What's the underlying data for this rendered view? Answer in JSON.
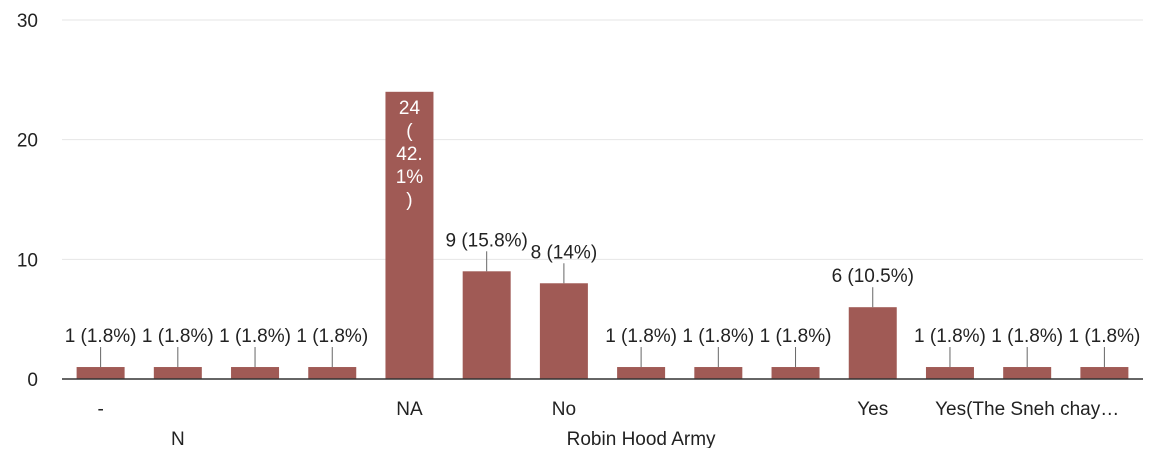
{
  "chart_data": {
    "type": "bar",
    "categories": [
      "-",
      "N",
      "",
      "",
      "NA",
      "",
      "No",
      "Robin Hood Army",
      "",
      "",
      "Yes",
      "",
      "Yes(The Sneh chay…",
      ""
    ],
    "values": [
      1,
      1,
      1,
      1,
      24,
      9,
      8,
      1,
      1,
      1,
      6,
      1,
      1,
      1
    ],
    "data_labels": [
      "1 (1.8%)",
      "1 (1.8%)",
      "1 (1.8%)",
      "1 (1.8%)",
      "24 (42.1%)",
      "9 (15.8%)",
      "8 (14%)",
      "1 (1.8%)",
      "1 (1.8%)",
      "1 (1.8%)",
      "6 (10.5%)",
      "1 (1.8%)",
      "1 (1.8%)",
      "1 (1.8%)"
    ],
    "label_inside_bar": [
      false,
      false,
      false,
      false,
      true,
      false,
      false,
      false,
      false,
      false,
      false,
      false,
      false,
      false
    ],
    "inside_label_lines": [
      "24",
      "(",
      "42.",
      "1%",
      ")"
    ],
    "yticks": [
      "0",
      "10",
      "20",
      "30"
    ],
    "ylim": [
      0,
      30
    ],
    "grid": true,
    "legend": "none",
    "title": "",
    "xlabel": "",
    "ylabel": "",
    "colors": {
      "bar": "#a05a55",
      "grid": "#e6e6e6",
      "axis": "#333333",
      "text": "#222222",
      "inside_text": "#ffffff"
    }
  }
}
